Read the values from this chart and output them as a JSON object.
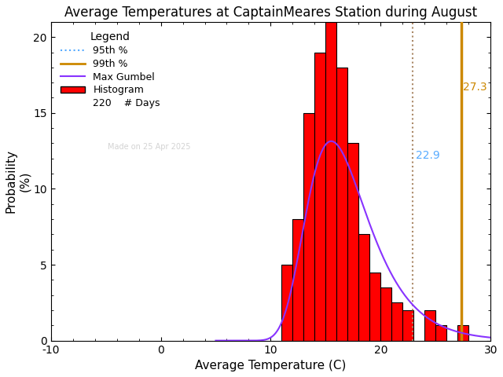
{
  "title": "Average Temperatures at CaptainMeares Station during August",
  "xlabel": "Average Temperature (C)",
  "ylabel": "Probability\n(%)",
  "xlim": [
    -10,
    30
  ],
  "ylim": [
    0,
    21
  ],
  "bin_edges": [
    11,
    12,
    13,
    14,
    15,
    16,
    17,
    18,
    19,
    20,
    21,
    22,
    23,
    24,
    25,
    26,
    27,
    28
  ],
  "bin_heights": [
    5.0,
    8.0,
    15.0,
    19.0,
    21.0,
    18.0,
    13.0,
    7.0,
    4.5,
    3.5,
    2.5,
    2.0,
    0.0,
    2.0,
    1.0,
    0.0,
    1.0
  ],
  "bar_color": "#ff0000",
  "bar_edgecolor": "#000000",
  "gumbel_color": "#8833ff",
  "pct95_color": "#55aaff",
  "pct99_color": "#cc8800",
  "pct95_dotted_color": "#aa8866",
  "pct95_value": 22.9,
  "pct99_value": 27.3,
  "n_days": 220,
  "gumbel_mu": 15.5,
  "gumbel_beta": 2.8,
  "watermark": "Made on 25 Apr 2025",
  "legend_title": "Legend",
  "background_color": "#ffffff",
  "title_fontsize": 12,
  "axis_fontsize": 11,
  "tick_fontsize": 10
}
